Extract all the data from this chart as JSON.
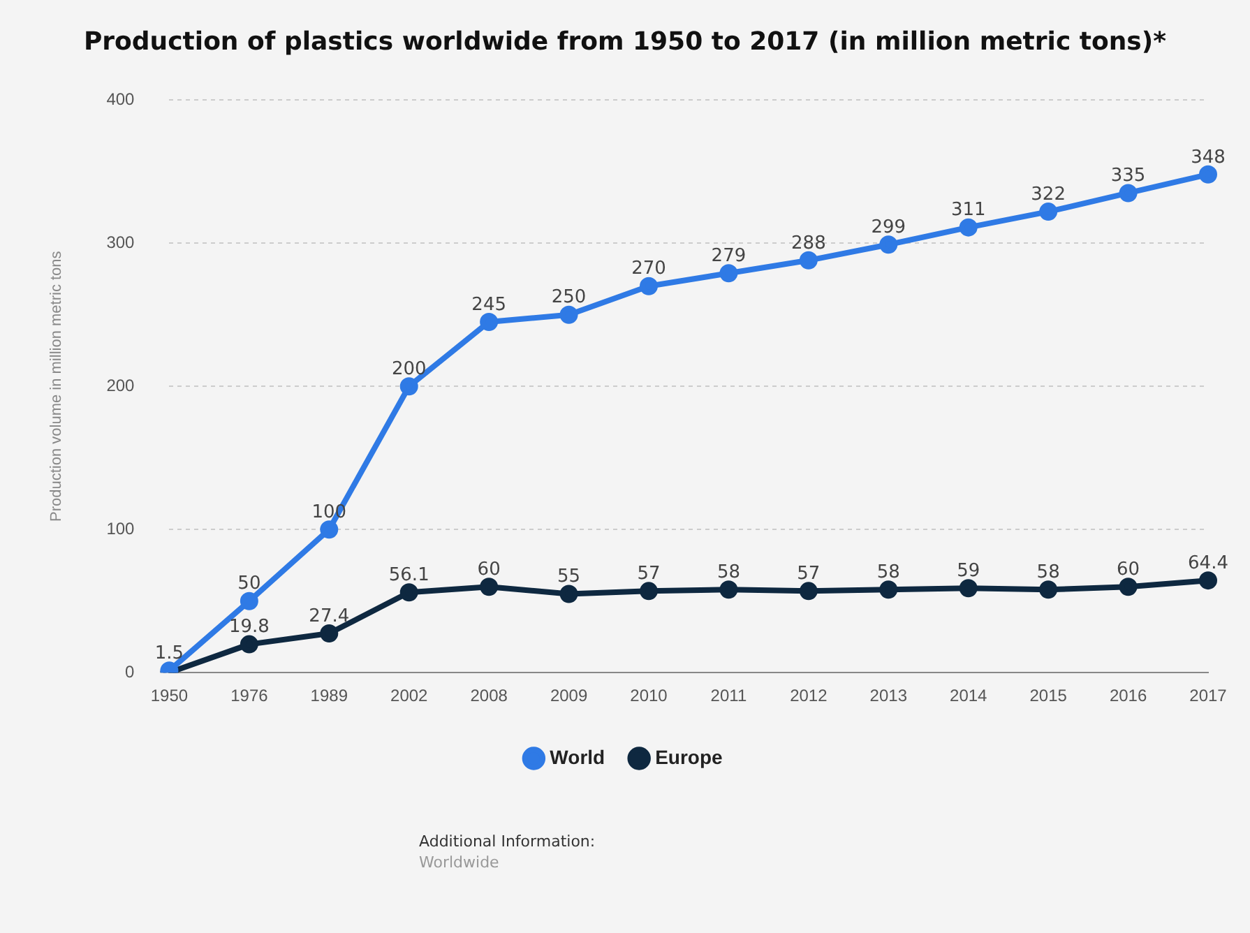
{
  "chart_data": {
    "type": "line",
    "title": "Production of plastics worldwide from 1950 to 2017 (in million metric tons)*",
    "ylabel": "Production volume in million metric tons",
    "categories": [
      "1950",
      "1976",
      "1989",
      "2002",
      "2008",
      "2009",
      "2010",
      "2011",
      "2012",
      "2013",
      "2014",
      "2015",
      "2016",
      "2017"
    ],
    "series": [
      {
        "name": "World",
        "color": "#2f7ae5",
        "values": [
          1.5,
          50,
          100,
          200,
          245,
          250,
          270,
          279,
          288,
          299,
          311,
          322,
          335,
          348
        ],
        "value_labels": [
          "1.5",
          "50",
          "100",
          "200",
          "245",
          "250",
          "270",
          "279",
          "288",
          "299",
          "311",
          "322",
          "335",
          "348"
        ]
      },
      {
        "name": "Europe",
        "color": "#0e2840",
        "values": [
          0,
          19.8,
          27.4,
          56.1,
          60,
          55,
          57,
          58,
          57,
          58,
          59,
          58,
          60,
          64.4
        ],
        "value_labels": [
          null,
          "19.8",
          "27.4",
          "56.1",
          "60",
          "55",
          "57",
          "58",
          "57",
          "58",
          "59",
          "58",
          "60",
          "64.4"
        ]
      }
    ],
    "ylim": [
      0,
      400
    ],
    "yticks": [
      0,
      100,
      200,
      300,
      400
    ],
    "grid": "y",
    "legend": "bottom",
    "marker": "circle",
    "line_style": "solid",
    "annotations": [
      "Additional Information:",
      "Worldwide"
    ]
  }
}
